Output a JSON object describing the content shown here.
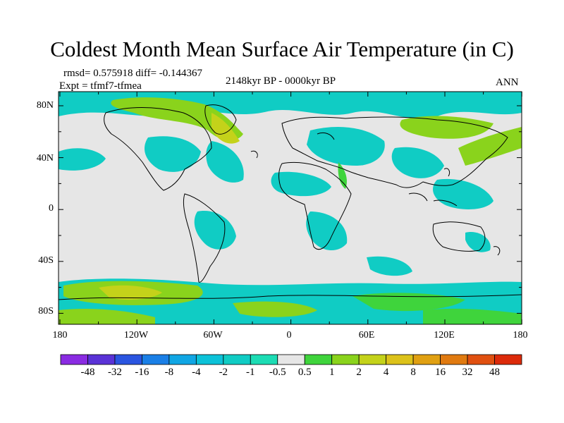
{
  "title": "Coldest Month Mean Surface Air Temperature (in C)",
  "stats": "rmsd= 0.575918 diff= -0.144367",
  "expt": "Expt = tfmf7-tfmea",
  "period": "2148kyr BP - 0000kyr BP",
  "season": "ANN",
  "lat_labels": [
    "80N",
    "40N",
    "0",
    "40S",
    "80S"
  ],
  "lon_labels": [
    "180",
    "120W",
    "60W",
    "0",
    "60E",
    "120E",
    "180"
  ],
  "colorbar": {
    "labels": [
      "-48",
      "-32",
      "-16",
      "-8",
      "-4",
      "-2",
      "-1",
      "-0.5",
      "0.5",
      "1",
      "2",
      "4",
      "8",
      "16",
      "32",
      "48"
    ],
    "colors": [
      "#8a2be2",
      "#5a32d6",
      "#2a55e0",
      "#1a7fe6",
      "#10a6e4",
      "#0cc2d8",
      "#10ccc4",
      "#1cdcb4",
      "#e6e6e6",
      "#3fd43c",
      "#8ad31c",
      "#c4d21a",
      "#dcc21a",
      "#e0a012",
      "#e07a10",
      "#e05010",
      "#dc2a0a"
    ]
  },
  "colors": {
    "ocean_land_neutral": "#e6e6e6",
    "coast": "#000000"
  }
}
